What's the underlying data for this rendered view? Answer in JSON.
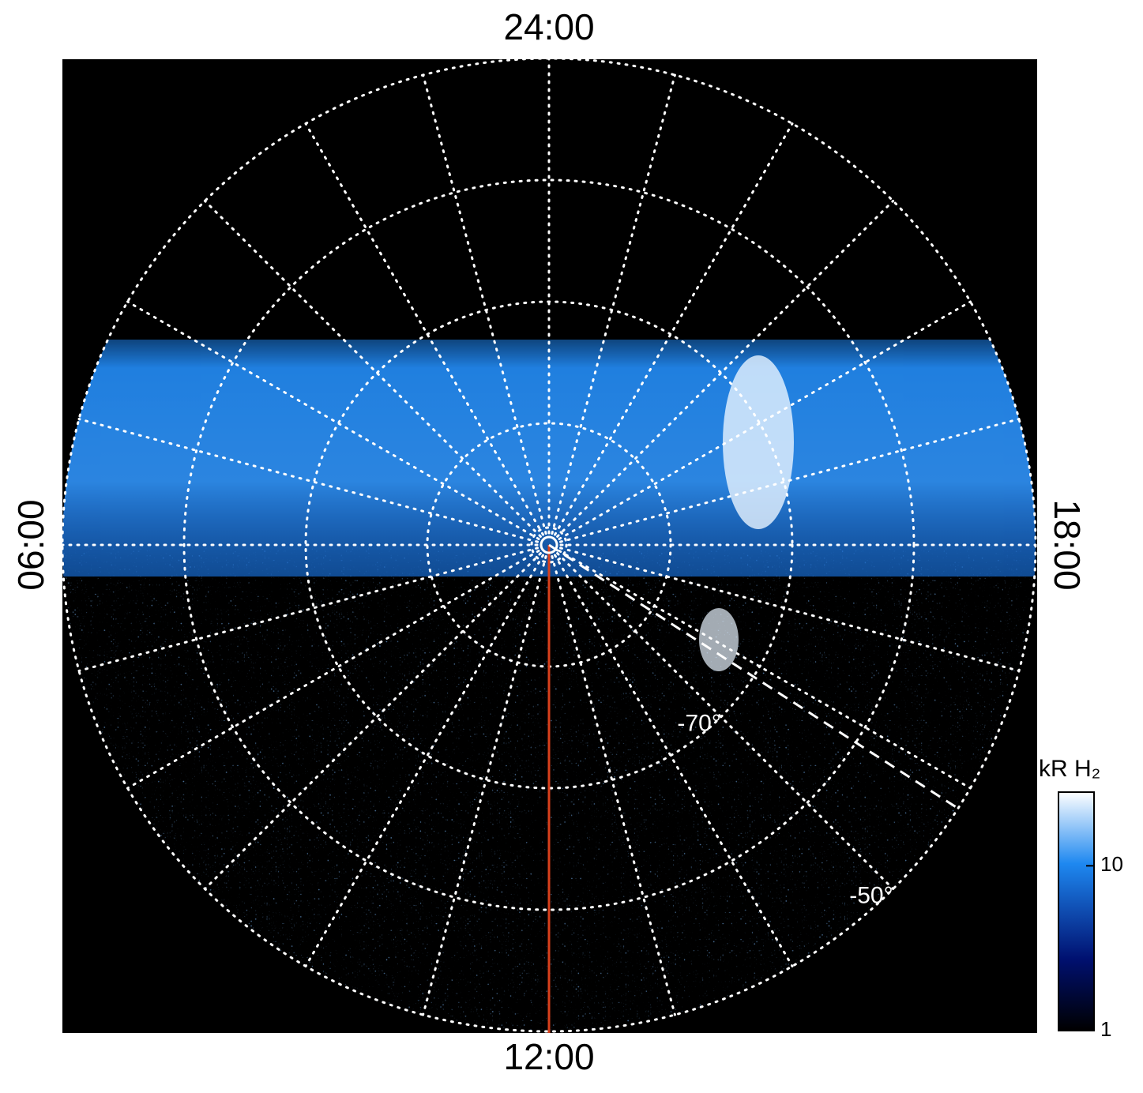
{
  "chart_data": {
    "type": "polar",
    "lt_labels": [
      {
        "value": 24,
        "label": "24:00"
      },
      {
        "value": 6,
        "label": "06:00"
      },
      {
        "value": 12,
        "label": "12:00"
      },
      {
        "value": 18,
        "label": "18:00"
      }
    ],
    "latlim": [
      -90,
      -50
    ],
    "lat_rings": [
      -80,
      -70,
      -60,
      -50
    ],
    "lat_labels": [
      {
        "value": -70,
        "label": "-70°"
      },
      {
        "value": -50,
        "label": "-50°"
      }
    ],
    "colorbar": {
      "label": "kR H₂",
      "scale": "log",
      "clim": [
        1,
        28
      ],
      "ticks": [
        1,
        10
      ]
    }
  }
}
